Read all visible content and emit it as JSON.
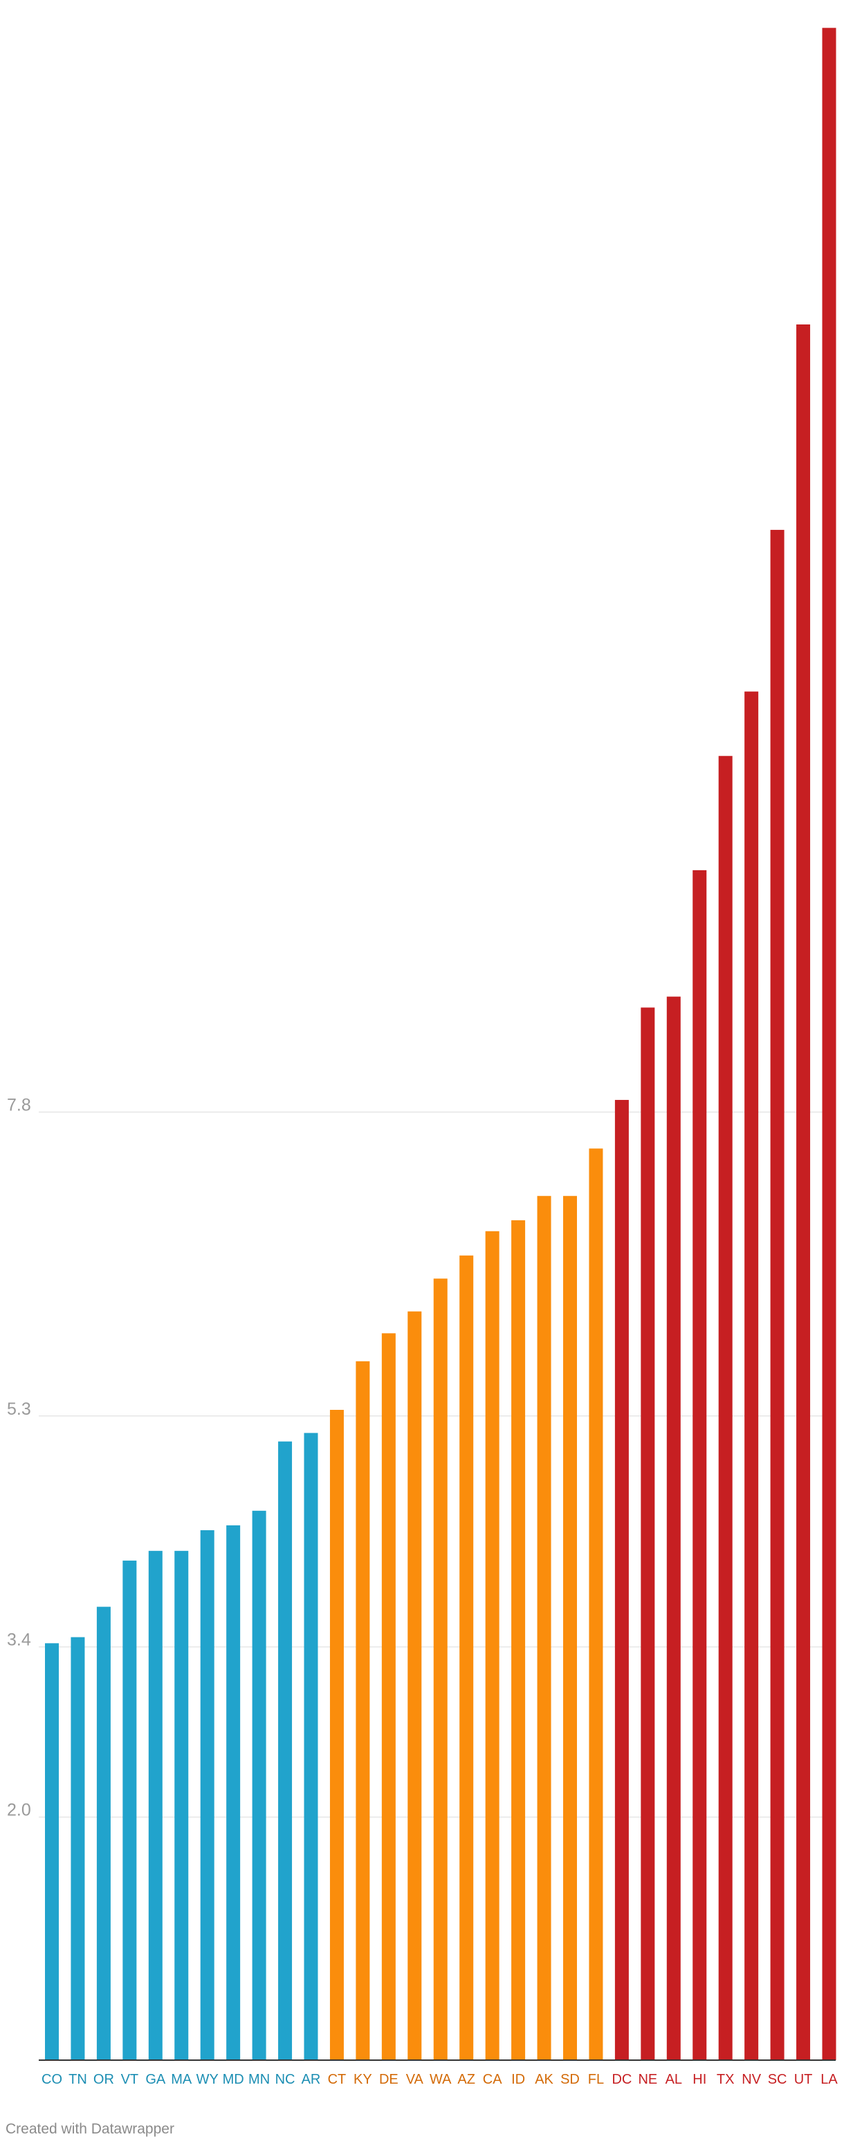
{
  "chart_data": {
    "type": "bar",
    "title": "",
    "xlabel": "",
    "ylabel": "",
    "ylim": [
      0,
      16.8
    ],
    "yticks": [
      2.0,
      3.4,
      5.3,
      7.8
    ],
    "ytick_labels": [
      "2.0",
      "3.4",
      "5.3",
      "7.8"
    ],
    "grid": true,
    "categories": [
      "CO",
      "TN",
      "OR",
      "VT",
      "GA",
      "MA",
      "WY",
      "MD",
      "MN",
      "NC",
      "AR",
      "CT",
      "KY",
      "DE",
      "VA",
      "WA",
      "AZ",
      "CA",
      "ID",
      "AK",
      "SD",
      "FL",
      "DC",
      "NE",
      "AL",
      "HI",
      "TX",
      "NV",
      "SC",
      "UT",
      "LA"
    ],
    "values": [
      3.43,
      3.48,
      3.73,
      4.11,
      4.19,
      4.19,
      4.36,
      4.4,
      4.52,
      5.09,
      5.16,
      5.35,
      5.75,
      5.98,
      6.16,
      6.43,
      6.62,
      6.82,
      6.91,
      7.11,
      7.11,
      7.5,
      7.9,
      8.66,
      8.75,
      9.79,
      10.73,
      11.26,
      12.59,
      14.28,
      16.72
    ],
    "groups": [
      0,
      0,
      0,
      0,
      0,
      0,
      0,
      0,
      0,
      0,
      0,
      1,
      1,
      1,
      1,
      1,
      1,
      1,
      1,
      1,
      1,
      1,
      2,
      2,
      2,
      2,
      2,
      2,
      2,
      2,
      2
    ],
    "group_colors": [
      "#21a3cc",
      "#fa8d0c",
      "#c61f22"
    ],
    "label_colors": [
      "#1c8eb3",
      "#d36a07",
      "#c61f22"
    ]
  },
  "credit": "Created with Datawrapper"
}
